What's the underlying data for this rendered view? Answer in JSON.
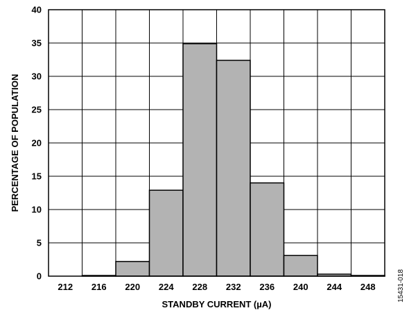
{
  "chart_data": {
    "type": "bar",
    "categories": [
      "212",
      "216",
      "220",
      "224",
      "228",
      "232",
      "236",
      "240",
      "244",
      "248"
    ],
    "values": [
      0,
      0.1,
      2.2,
      12.9,
      34.9,
      32.4,
      14.0,
      3.1,
      0.3,
      0.1
    ],
    "title": "",
    "xlabel": "STANDBY CURRENT (µA)",
    "ylabel": "PERCENTAGE OF POPULATION",
    "ylim": [
      0,
      40
    ],
    "yticks": [
      "0",
      "5",
      "10",
      "15",
      "20",
      "25",
      "30",
      "35",
      "40"
    ],
    "grid": true,
    "bar_color": "#b3b3b3",
    "figure_id": "15431-018"
  }
}
